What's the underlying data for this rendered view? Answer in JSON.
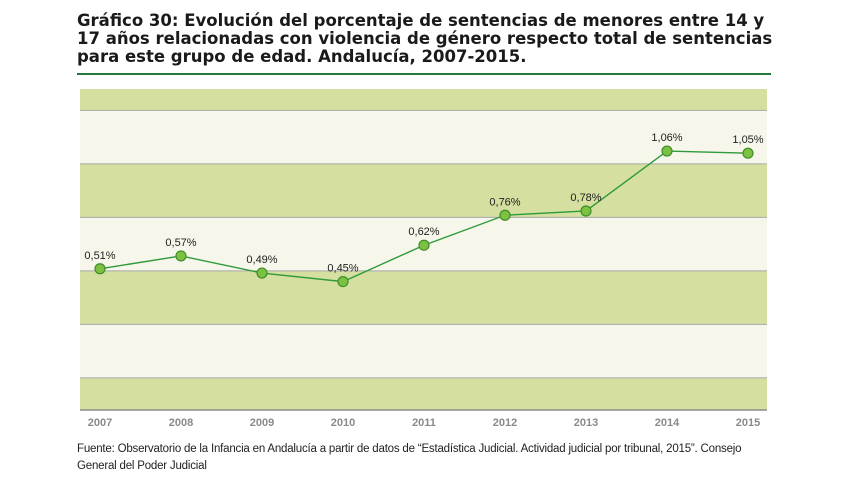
{
  "figure": {
    "title": "Gráfico 30: Evolución del porcentaje de sentencias de menores entre 14 y 17 años relacionadas con violencia de género respecto total de sentencias para este grupo de edad. Andalucía, 2007-2015.",
    "source": "Fuente: Observatorio de la Infancia en Andalucía a partir de datos de “Estadística Judicial. Actividad judicial por tribunal, 2015”. Consejo General del Poder Judicial"
  },
  "colors": {
    "band_dark": "#d4dfa0",
    "band_light": "#f6f6ea",
    "line": "#2e9a3a",
    "marker_fill": "#7cc142",
    "title_rule": "#1f7a3d"
  },
  "chart_data": {
    "type": "line",
    "title": "",
    "xlabel": "",
    "ylabel": "",
    "categories": [
      "2007",
      "2008",
      "2009",
      "2010",
      "2011",
      "2012",
      "2013",
      "2014",
      "2015"
    ],
    "values": [
      0.51,
      0.57,
      0.49,
      0.45,
      0.62,
      0.76,
      0.78,
      1.06,
      1.05
    ],
    "data_labels": [
      "0,51%",
      "0,57%",
      "0,49%",
      "0,45%",
      "0,62%",
      "0,76%",
      "0,78%",
      "1,06%",
      "1,05%"
    ],
    "ylim": [
      -0.15,
      1.35
    ],
    "y_gridlines": [
      0.0,
      0.25,
      0.5,
      0.75,
      1.0,
      1.25
    ],
    "y_tick_labels_shown": false,
    "grid": true,
    "legend": "none"
  }
}
